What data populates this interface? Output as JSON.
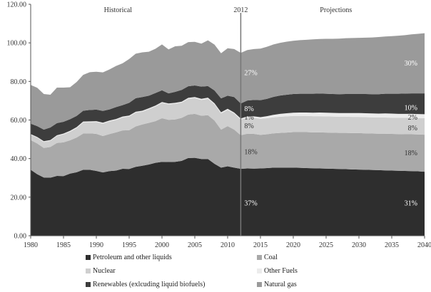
{
  "chart_data": {
    "type": "area",
    "title": "",
    "xlabel": "",
    "ylabel": "",
    "ylim": [
      0,
      120
    ],
    "xlim": [
      1980,
      2040
    ],
    "y_ticks": [
      "0.00",
      "20.00",
      "40.00",
      "60.00",
      "80.00",
      "100.00",
      "120.00"
    ],
    "x_ticks": [
      "1980",
      "1985",
      "1990",
      "1995",
      "2000",
      "2005",
      "2010",
      "2015",
      "2020",
      "2025",
      "2030",
      "2035",
      "2040"
    ],
    "grid": false,
    "stacked": true,
    "x": [
      1980,
      1981,
      1982,
      1983,
      1984,
      1985,
      1986,
      1987,
      1988,
      1989,
      1990,
      1991,
      1992,
      1993,
      1994,
      1995,
      1996,
      1997,
      1998,
      1999,
      2000,
      2001,
      2002,
      2003,
      2004,
      2005,
      2006,
      2007,
      2008,
      2009,
      2010,
      2011,
      2012,
      2013,
      2014,
      2015,
      2016,
      2017,
      2018,
      2019,
      2020,
      2021,
      2022,
      2023,
      2024,
      2025,
      2026,
      2027,
      2028,
      2029,
      2030,
      2031,
      2032,
      2033,
      2034,
      2035,
      2036,
      2037,
      2038,
      2039,
      2040
    ],
    "series": [
      {
        "name": "Petroleum and other liquids",
        "color": "#2e2e2e",
        "values": [
          34.2,
          31.9,
          30.2,
          30.1,
          31.0,
          30.9,
          32.2,
          32.9,
          34.2,
          34.2,
          33.6,
          32.8,
          33.5,
          33.8,
          34.7,
          34.6,
          35.7,
          36.3,
          36.9,
          37.8,
          38.3,
          38.2,
          38.3,
          38.8,
          40.3,
          40.4,
          39.8,
          39.8,
          37.3,
          35.3,
          36.0,
          35.3,
          34.7,
          34.9,
          34.8,
          34.9,
          35.1,
          35.3,
          35.3,
          35.3,
          35.3,
          35.2,
          35.1,
          35.0,
          34.9,
          34.8,
          34.7,
          34.6,
          34.5,
          34.4,
          34.3,
          34.2,
          34.1,
          34.0,
          33.9,
          33.8,
          33.7,
          33.6,
          33.5,
          33.4,
          33.2
        ]
      },
      {
        "name": "Coal",
        "color": "#a9a9a9",
        "values": [
          15.4,
          15.9,
          15.3,
          15.9,
          17.1,
          17.5,
          17.3,
          18.0,
          18.8,
          18.9,
          19.2,
          18.9,
          19.2,
          19.8,
          19.9,
          20.1,
          21.0,
          21.4,
          21.6,
          21.6,
          22.6,
          21.9,
          22.0,
          22.3,
          22.5,
          22.8,
          22.4,
          22.7,
          22.4,
          19.7,
          20.8,
          19.7,
          17.4,
          18.0,
          18.0,
          17.4,
          17.5,
          17.8,
          18.0,
          18.2,
          18.4,
          18.5,
          18.6,
          18.6,
          18.7,
          18.7,
          18.7,
          18.7,
          18.8,
          18.8,
          18.9,
          18.9,
          18.9,
          18.9,
          19.0,
          19.0,
          19.0,
          19.0,
          19.1,
          19.1,
          19.2
        ]
      },
      {
        "name": "Nuclear",
        "color": "#cfcfcf",
        "values": [
          2.7,
          3.0,
          3.1,
          3.2,
          3.6,
          4.1,
          4.4,
          4.9,
          5.7,
          5.7,
          6.1,
          6.4,
          6.5,
          6.4,
          6.7,
          7.1,
          7.1,
          6.6,
          7.1,
          7.6,
          7.9,
          8.0,
          8.1,
          7.9,
          8.2,
          8.2,
          8.2,
          8.5,
          8.4,
          8.4,
          8.4,
          8.3,
          8.1,
          8.3,
          8.3,
          8.3,
          8.3,
          8.3,
          8.4,
          8.4,
          8.4,
          8.4,
          8.4,
          8.4,
          8.4,
          8.4,
          8.4,
          8.4,
          8.4,
          8.4,
          8.4,
          8.4,
          8.4,
          8.4,
          8.4,
          8.4,
          8.4,
          8.5,
          8.5,
          8.5,
          8.5
        ]
      },
      {
        "name": "Other Fuels",
        "color": "#ececec",
        "values": [
          0.4,
          0.4,
          0.4,
          0.4,
          0.4,
          0.5,
          0.5,
          0.5,
          0.5,
          0.5,
          0.5,
          0.5,
          0.5,
          0.5,
          0.5,
          0.5,
          0.5,
          0.5,
          0.5,
          0.5,
          0.5,
          0.5,
          0.5,
          0.5,
          0.5,
          0.5,
          0.6,
          0.6,
          0.6,
          0.6,
          0.6,
          0.6,
          0.6,
          0.7,
          0.8,
          0.9,
          1.1,
          1.3,
          1.5,
          1.6,
          1.7,
          1.8,
          1.8,
          1.8,
          1.9,
          1.9,
          1.9,
          1.9,
          1.9,
          2.0,
          2.0,
          2.0,
          2.0,
          2.0,
          2.1,
          2.1,
          2.1,
          2.1,
          2.1,
          2.1,
          2.1
        ]
      },
      {
        "name": "Renewables (exlcuding liquid biofuels)",
        "color": "#3d3d3d",
        "values": [
          5.4,
          5.6,
          6.0,
          6.5,
          6.3,
          6.1,
          6.0,
          5.8,
          5.6,
          5.9,
          6.0,
          6.1,
          5.8,
          6.2,
          5.9,
          6.6,
          7.0,
          7.1,
          6.5,
          6.5,
          6.1,
          5.2,
          5.7,
          6.1,
          6.0,
          6.0,
          6.3,
          6.0,
          6.6,
          7.2,
          6.8,
          8.0,
          7.8,
          8.2,
          8.5,
          8.8,
          9.0,
          9.3,
          9.5,
          9.6,
          9.7,
          9.7,
          9.7,
          9.8,
          9.8,
          9.8,
          9.8,
          9.8,
          9.9,
          9.9,
          9.9,
          10.0,
          10.0,
          10.1,
          10.2,
          10.3,
          10.4,
          10.5,
          10.6,
          10.7,
          10.8
        ]
      },
      {
        "name": "Natural gas",
        "color": "#9a9a9a",
        "values": [
          20.1,
          19.9,
          18.5,
          17.0,
          18.4,
          17.7,
          16.6,
          17.6,
          18.6,
          19.6,
          19.6,
          20.0,
          20.7,
          21.3,
          21.7,
          22.7,
          23.1,
          23.2,
          22.8,
          22.9,
          23.8,
          22.8,
          23.6,
          22.9,
          22.9,
          22.6,
          22.3,
          23.7,
          23.8,
          23.4,
          24.6,
          24.9,
          26.2,
          26.2,
          26.4,
          26.7,
          27.0,
          27.2,
          27.3,
          27.5,
          27.6,
          27.8,
          28.0,
          28.2,
          28.3,
          28.5,
          28.6,
          28.8,
          28.9,
          29.0,
          29.1,
          29.2,
          29.4,
          29.6,
          29.7,
          29.9,
          30.1,
          30.3,
          30.6,
          30.9,
          31.2
        ]
      }
    ],
    "annotations": {
      "historical": "Historical",
      "divider_label": "2012",
      "divider_year": 2012,
      "projections": "Projections"
    },
    "share_labels": [
      {
        "text": "37%",
        "x": 2012,
        "y": 17,
        "color": "#ffffff"
      },
      {
        "text": "18%",
        "x": 2012,
        "y": 43.5,
        "color": "#333333"
      },
      {
        "text": "8%",
        "x": 2012,
        "y": 57,
        "color": "#333333"
      },
      {
        "text": "1%",
        "x": 2012,
        "y": 61.5,
        "color": "#333333"
      },
      {
        "text": "8%",
        "x": 2012,
        "y": 66,
        "color": "#ffffff"
      },
      {
        "text": "27%",
        "x": 2012,
        "y": 84.5,
        "color": "#ffffff"
      },
      {
        "text": "31%",
        "x": 2040,
        "y": 17,
        "color": "#ffffff"
      },
      {
        "text": "18%",
        "x": 2040,
        "y": 43,
        "color": "#333333"
      },
      {
        "text": "8%",
        "x": 2040,
        "y": 56,
        "color": "#333333"
      },
      {
        "text": "2%",
        "x": 2040,
        "y": 61.5,
        "color": "#333333"
      },
      {
        "text": "10%",
        "x": 2040,
        "y": 66.5,
        "color": "#ffffff"
      },
      {
        "text": "30%",
        "x": 2040,
        "y": 89.5,
        "color": "#ffffff"
      }
    ],
    "legend_position": "bottom"
  }
}
